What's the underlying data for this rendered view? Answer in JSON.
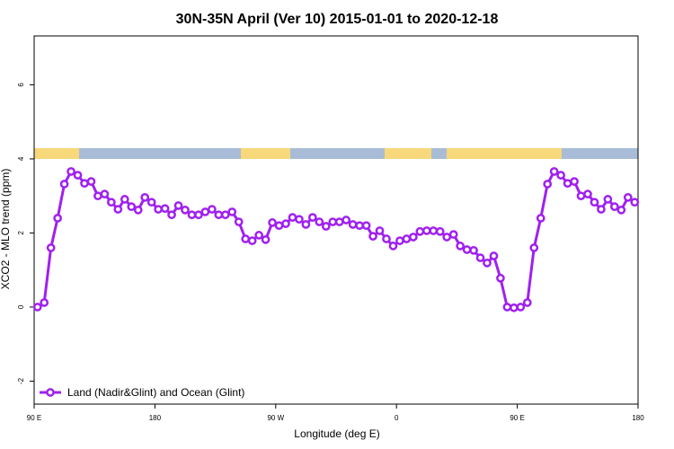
{
  "chart_data": {
    "type": "line",
    "title": "30N-35N April (Ver 10)   2015-01-01 to 2020-12-18",
    "xlabel": "Longitude (deg E)",
    "ylabel": "XCO2 - MLO trend (ppm)",
    "x": [
      92.5,
      97.5,
      102.5,
      107.5,
      112.5,
      117.5,
      122.5,
      127.5,
      132.5,
      137.5,
      142.5,
      147.5,
      152.5,
      157.5,
      162.5,
      167.5,
      172.5,
      177.5,
      182.5,
      187.5,
      192.5,
      197.5,
      202.5,
      207.5,
      212.5,
      217.5,
      222.5,
      227.5,
      232.5,
      237.5,
      242.5,
      247.5,
      252.5,
      257.5,
      262.5,
      267.5,
      272.5,
      277.5,
      282.5,
      287.5,
      292.5,
      297.5,
      302.5,
      307.5,
      312.5,
      317.5,
      322.5,
      327.5,
      332.5,
      337.5,
      342.5,
      347.5,
      352.5,
      357.5,
      362.5,
      367.5,
      372.5,
      377.5,
      382.5,
      387.5,
      392.5,
      397.5,
      402.5,
      407.5,
      412.5,
      417.5,
      422.5,
      427.5,
      432.5,
      437.5,
      442.5,
      447.5,
      452.5,
      457.5,
      462.5,
      467.5,
      472.5,
      477.5,
      482.5,
      487.5,
      492.5,
      497.5,
      502.5,
      507.5,
      512.5,
      517.5,
      522.5,
      527.5,
      532.5,
      537.5
    ],
    "series": [
      {
        "name": "Land (Nadir&Glint) and Ocean (Glint)",
        "color": "#a020f0",
        "values": [
          0.0,
          0.12,
          1.6,
          2.4,
          3.32,
          3.66,
          3.56,
          3.34,
          3.39,
          3.0,
          3.05,
          2.83,
          2.64,
          2.91,
          2.71,
          2.62,
          2.96,
          2.83,
          2.64,
          2.66,
          2.49,
          2.74,
          2.62,
          2.49,
          2.49,
          2.57,
          2.64,
          2.49,
          2.49,
          2.57,
          2.3,
          1.84,
          1.79,
          1.94,
          1.82,
          2.28,
          2.2,
          2.25,
          2.42,
          2.37,
          2.23,
          2.42,
          2.3,
          2.18,
          2.3,
          2.3,
          2.35,
          2.23,
          2.2,
          2.2,
          1.91,
          2.06,
          1.84,
          1.65,
          1.79,
          1.84,
          1.89,
          2.04,
          2.06,
          2.06,
          2.04,
          1.89,
          1.96,
          1.65,
          1.55,
          1.53,
          1.33,
          1.19,
          1.38,
          0.78,
          0.0,
          -0.02,
          0.0,
          0.12,
          1.6,
          2.4,
          3.32,
          3.66,
          3.56,
          3.34,
          3.39,
          3.0,
          3.05,
          2.83,
          2.64,
          2.91,
          2.71,
          2.62,
          2.96,
          2.83
        ]
      }
    ],
    "xlim": [
      90,
      540
    ],
    "xticks": [
      {
        "value": 90,
        "label": "90 E"
      },
      180,
      {
        "value": 270,
        "label": "90 W"
      },
      {
        "value": 360,
        "label": "0"
      },
      {
        "value": 450,
        "label": "90 E"
      },
      {
        "value": 540,
        "label": "180"
      }
    ],
    "ylim": [
      -2.62,
      7.32
    ],
    "yticks": [
      -2,
      0,
      2,
      4,
      6
    ],
    "legend": "bottom-left"
  }
}
